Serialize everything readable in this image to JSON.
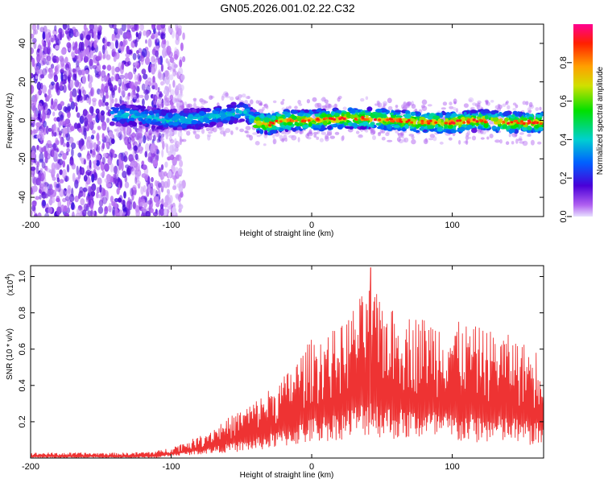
{
  "title": "GN05.2026.001.02.22.C32",
  "chart_data": [
    {
      "type": "heatmap",
      "xlabel": "Height of straight line (km)",
      "ylabel": "Frequency (Hz)",
      "xlim": [
        -200,
        165
      ],
      "ylim": [
        -50,
        50
      ],
      "xticks": [
        -200,
        -100,
        0,
        100
      ],
      "yticks": [
        -40,
        -20,
        0,
        20,
        40
      ],
      "colorbar": {
        "label": "Normalized spectral amplitude",
        "range": [
          0,
          1
        ],
        "ticks": [
          0.0,
          0.2,
          0.4,
          0.6,
          0.8
        ]
      },
      "noise_region_x": [
        -200,
        -105
      ],
      "ridge": {
        "x": [
          -140,
          -120,
          -100,
          -80,
          -60,
          -48,
          -40,
          -30,
          -20,
          0,
          20,
          40,
          60,
          80,
          100,
          120,
          140,
          165
        ],
        "freq": [
          3,
          2,
          0,
          1,
          3,
          5,
          -1,
          -2,
          0,
          0,
          1,
          1,
          0,
          -1,
          -1,
          0,
          -1,
          -1
        ]
      }
    },
    {
      "type": "line",
      "xlabel": "Height of straight line (km)",
      "ylabel": "SNR (10 * v/v)",
      "y_scale_label": "(x10",
      "y_scale_exponent": "4",
      "xlim": [
        -200,
        165
      ],
      "ylim": [
        0,
        1.06
      ],
      "xticks": [
        -200,
        -100,
        0,
        100
      ],
      "yticks": [
        0.2,
        0.4,
        0.6,
        0.8,
        1.0
      ],
      "envelope": {
        "x": [
          -200,
          -130,
          -110,
          -100,
          -80,
          -60,
          -40,
          -20,
          0,
          20,
          40,
          60,
          80,
          100,
          120,
          140,
          165
        ],
        "low": [
          0.0,
          0.0,
          0.0,
          0.01,
          0.02,
          0.03,
          0.04,
          0.06,
          0.08,
          0.1,
          0.12,
          0.1,
          0.1,
          0.08,
          0.08,
          0.08,
          0.06
        ],
        "high": [
          0.03,
          0.03,
          0.04,
          0.06,
          0.12,
          0.22,
          0.32,
          0.45,
          0.66,
          0.72,
          0.95,
          0.8,
          0.78,
          0.76,
          0.72,
          0.68,
          0.58
        ]
      },
      "peak": {
        "x": 42,
        "y": 1.05
      }
    }
  ]
}
